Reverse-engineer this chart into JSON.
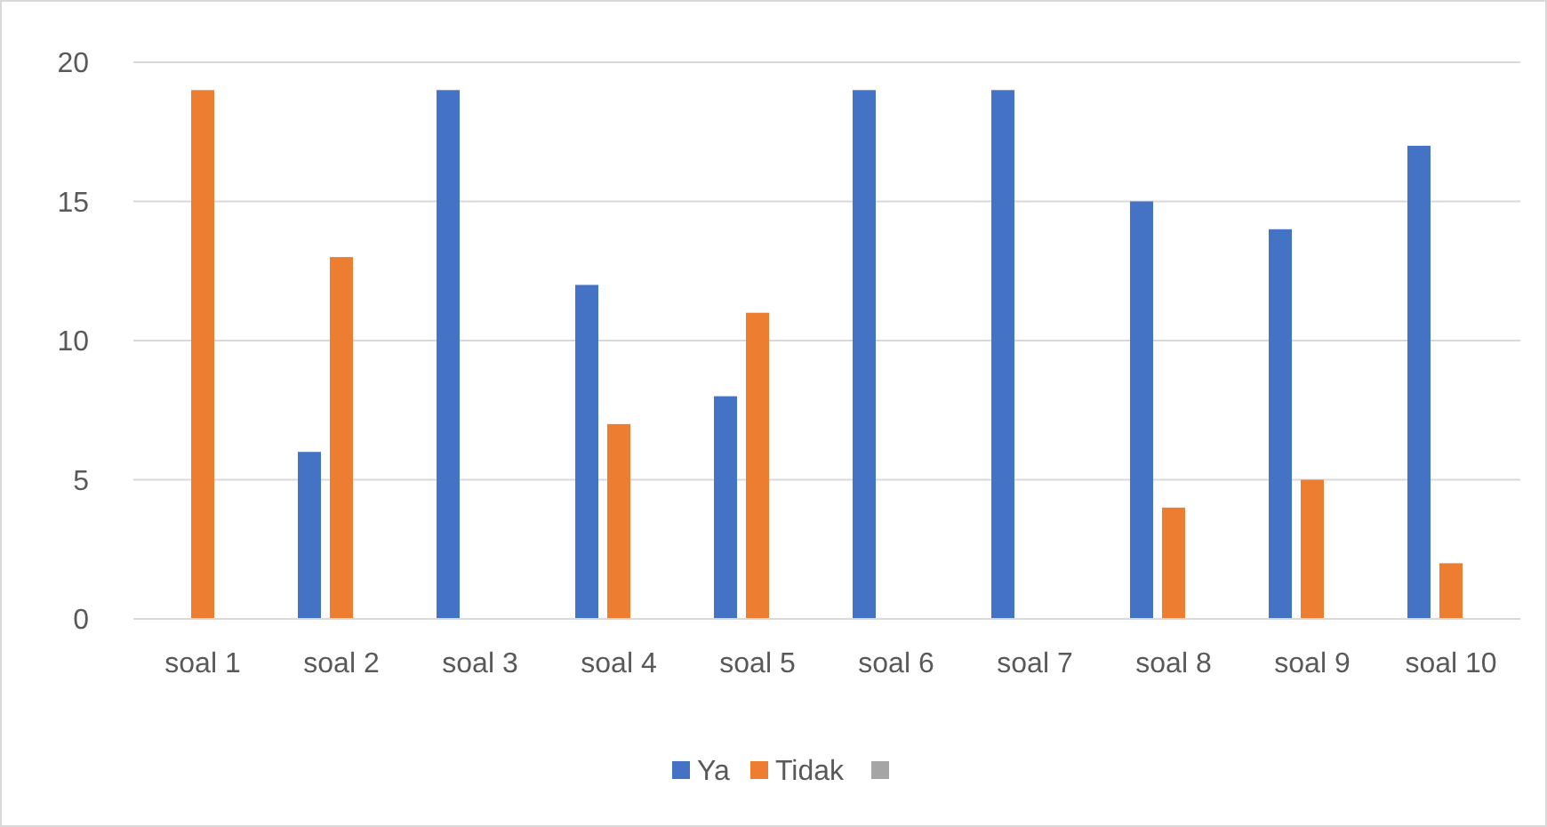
{
  "chart_data": {
    "type": "bar",
    "categories": [
      "soal 1",
      "soal 2",
      "soal 3",
      "soal 4",
      "soal 5",
      "soal 6",
      "soal 7",
      "soal 8",
      "soal 9",
      "soal 10"
    ],
    "series": [
      {
        "name": "Ya",
        "color": "#4472c4",
        "values": [
          0,
          6,
          19,
          12,
          8,
          19,
          19,
          15,
          14,
          17
        ]
      },
      {
        "name": "Tidak",
        "color": "#ed7d31",
        "values": [
          19,
          13,
          0,
          7,
          11,
          0,
          0,
          4,
          5,
          2
        ]
      },
      {
        "color": "#a5a5a5",
        "values": [
          null,
          null,
          null,
          null,
          null,
          null,
          null,
          null,
          null,
          null
        ]
      }
    ],
    "ylim": [
      0,
      20
    ],
    "yticks": [
      0,
      5,
      10,
      15,
      20
    ],
    "grid": "y",
    "legend": "bottom"
  }
}
